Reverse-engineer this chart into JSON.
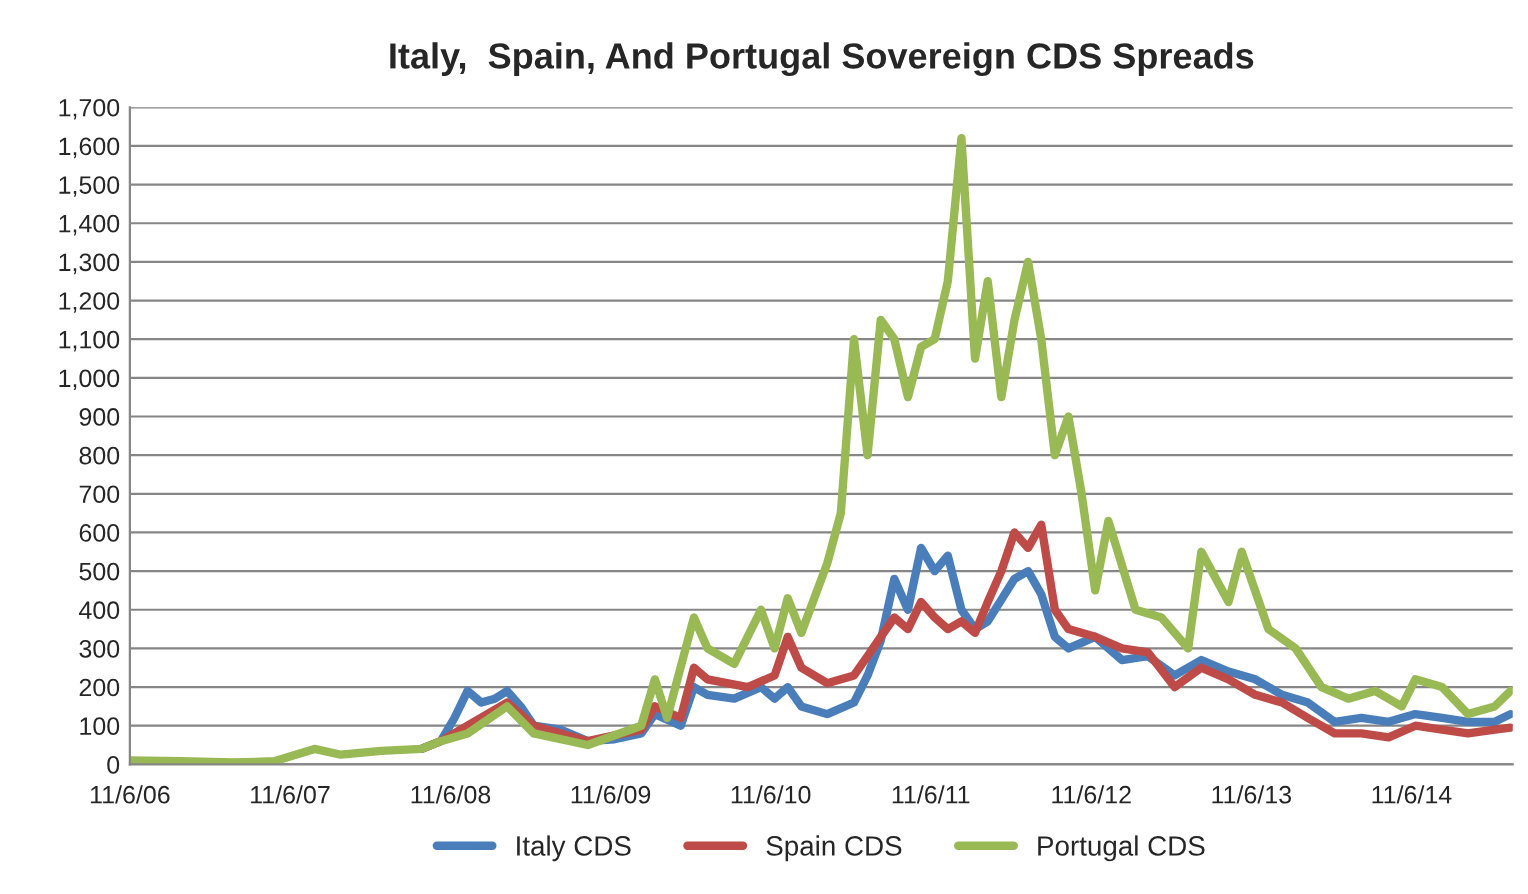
{
  "chart_data": {
    "type": "line",
    "title": "Italy,  Spain, And Portugal Sovereign CDS Spreads",
    "xlim": [
      "2006-11-06",
      "2015-06-25"
    ],
    "xticks": [
      {
        "value": "2006-11-06",
        "label": "11/6/06"
      },
      {
        "value": "2007-11-06",
        "label": "11/6/07"
      },
      {
        "value": "2008-11-06",
        "label": "11/6/08"
      },
      {
        "value": "2009-11-06",
        "label": "11/6/09"
      },
      {
        "value": "2010-11-06",
        "label": "11/6/10"
      },
      {
        "value": "2011-11-06",
        "label": "11/6/11"
      },
      {
        "value": "2012-11-06",
        "label": "11/6/12"
      },
      {
        "value": "2013-11-06",
        "label": "11/6/13"
      },
      {
        "value": "2014-11-06",
        "label": "11/6/14"
      }
    ],
    "ylim": [
      0,
      1700
    ],
    "yticks": [
      0,
      100,
      200,
      300,
      400,
      500,
      600,
      700,
      800,
      900,
      {
        "value": 1000,
        "label": "1,000"
      },
      {
        "value": 1100,
        "label": "1,100"
      },
      {
        "value": 1200,
        "label": "1,200"
      },
      {
        "value": 1300,
        "label": "1,300"
      },
      {
        "value": 1400,
        "label": "1,400"
      },
      {
        "value": 1500,
        "label": "1,500"
      },
      {
        "value": 1600,
        "label": "1,600"
      },
      {
        "value": 1700,
        "label": "1,700"
      }
    ],
    "grid": "y",
    "legend": "bottom",
    "line_style": "solid",
    "marker": "none",
    "series": [
      {
        "name": "Italy CDS",
        "color": "#4a7ebb",
        "x": [
          "2008-09-01",
          "2008-10-15",
          "2008-11-15",
          "2008-12-15",
          "2009-01-15",
          "2009-02-15",
          "2009-03-15",
          "2009-04-15",
          "2009-05-15",
          "2009-07-15",
          "2009-09-15",
          "2009-11-15",
          "2010-01-15",
          "2010-02-15",
          "2010-04-15",
          "2010-05-15",
          "2010-06-15",
          "2010-08-15",
          "2010-10-15",
          "2010-11-15",
          "2010-12-15",
          "2011-01-15",
          "2011-03-15",
          "2011-05-15",
          "2011-06-15",
          "2011-07-15",
          "2011-08-15",
          "2011-09-15",
          "2011-10-15",
          "2011-11-15",
          "2011-12-15",
          "2012-01-15",
          "2012-02-15",
          "2012-03-15",
          "2012-05-15",
          "2012-06-15",
          "2012-07-15",
          "2012-08-15",
          "2012-09-15",
          "2012-11-15",
          "2013-01-15",
          "2013-03-15",
          "2013-05-15",
          "2013-07-15",
          "2013-09-15",
          "2013-11-15",
          "2014-01-15",
          "2014-03-15",
          "2014-05-15",
          "2014-07-15",
          "2014-09-15",
          "2014-11-15",
          "2015-01-15",
          "2015-03-15",
          "2015-05-15",
          "2015-06-20"
        ],
        "values": [
          40,
          60,
          120,
          190,
          160,
          170,
          190,
          150,
          100,
          90,
          60,
          65,
          80,
          130,
          100,
          200,
          180,
          170,
          200,
          170,
          200,
          150,
          130,
          160,
          230,
          320,
          480,
          400,
          560,
          500,
          540,
          400,
          350,
          370,
          480,
          500,
          440,
          330,
          300,
          330,
          270,
          280,
          230,
          270,
          240,
          220,
          180,
          160,
          110,
          120,
          110,
          130,
          120,
          110,
          110,
          130
        ]
      },
      {
        "name": "Spain CDS",
        "color": "#be4b48",
        "x": [
          "2008-09-01",
          "2008-10-15",
          "2008-12-15",
          "2009-03-15",
          "2009-05-15",
          "2009-09-15",
          "2010-01-15",
          "2010-02-15",
          "2010-04-15",
          "2010-05-15",
          "2010-06-15",
          "2010-09-15",
          "2010-11-15",
          "2010-12-15",
          "2011-01-15",
          "2011-03-15",
          "2011-05-15",
          "2011-06-15",
          "2011-07-15",
          "2011-08-15",
          "2011-09-15",
          "2011-10-15",
          "2011-11-15",
          "2011-12-15",
          "2012-01-15",
          "2012-02-15",
          "2012-03-15",
          "2012-04-15",
          "2012-05-15",
          "2012-06-15",
          "2012-07-15",
          "2012-08-15",
          "2012-09-15",
          "2012-11-15",
          "2013-01-15",
          "2013-03-15",
          "2013-05-15",
          "2013-07-15",
          "2013-09-15",
          "2013-11-15",
          "2014-01-15",
          "2014-03-15",
          "2014-05-15",
          "2014-07-15",
          "2014-09-15",
          "2014-11-15",
          "2015-01-15",
          "2015-03-15",
          "2015-05-15",
          "2015-06-20"
        ],
        "values": [
          40,
          60,
          100,
          160,
          100,
          60,
          90,
          150,
          120,
          250,
          220,
          200,
          230,
          330,
          250,
          210,
          230,
          280,
          330,
          380,
          350,
          420,
          380,
          350,
          370,
          340,
          420,
          500,
          600,
          560,
          620,
          400,
          350,
          330,
          300,
          290,
          200,
          250,
          220,
          180,
          160,
          120,
          80,
          80,
          70,
          100,
          90,
          80,
          90,
          95
        ]
      },
      {
        "name": "Portugal CDS",
        "color": "#98b954",
        "x": [
          "2006-11-06",
          "2007-03-01",
          "2007-07-01",
          "2007-10-01",
          "2008-01-01",
          "2008-03-01",
          "2008-06-01",
          "2008-09-01",
          "2008-10-15",
          "2008-12-15",
          "2009-03-15",
          "2009-05-15",
          "2009-09-15",
          "2010-01-15",
          "2010-02-15",
          "2010-03-15",
          "2010-05-15",
          "2010-06-15",
          "2010-08-15",
          "2010-10-15",
          "2010-11-15",
          "2010-12-15",
          "2011-01-15",
          "2011-03-15",
          "2011-04-15",
          "2011-05-15",
          "2011-06-15",
          "2011-07-15",
          "2011-08-15",
          "2011-09-15",
          "2011-10-15",
          "2011-11-15",
          "2011-12-15",
          "2012-01-15",
          "2012-02-15",
          "2012-03-15",
          "2012-04-15",
          "2012-05-15",
          "2012-06-15",
          "2012-07-15",
          "2012-08-15",
          "2012-09-15",
          "2012-10-15",
          "2012-11-15",
          "2012-12-15",
          "2013-02-15",
          "2013-04-15",
          "2013-06-15",
          "2013-07-15",
          "2013-09-15",
          "2013-10-15",
          "2013-12-15",
          "2014-02-15",
          "2014-04-15",
          "2014-06-15",
          "2014-08-15",
          "2014-10-15",
          "2014-11-15",
          "2015-01-15",
          "2015-03-15",
          "2015-05-15",
          "2015-06-20"
        ],
        "values": [
          10,
          8,
          5,
          8,
          40,
          25,
          35,
          40,
          60,
          80,
          150,
          80,
          50,
          100,
          220,
          120,
          380,
          300,
          260,
          400,
          300,
          430,
          340,
          520,
          650,
          1100,
          800,
          1150,
          1100,
          950,
          1080,
          1100,
          1250,
          1620,
          1050,
          1250,
          950,
          1150,
          1300,
          1100,
          800,
          900,
          700,
          450,
          630,
          400,
          380,
          300,
          550,
          420,
          550,
          350,
          300,
          200,
          170,
          190,
          150,
          220,
          200,
          130,
          150,
          190
        ]
      }
    ]
  }
}
